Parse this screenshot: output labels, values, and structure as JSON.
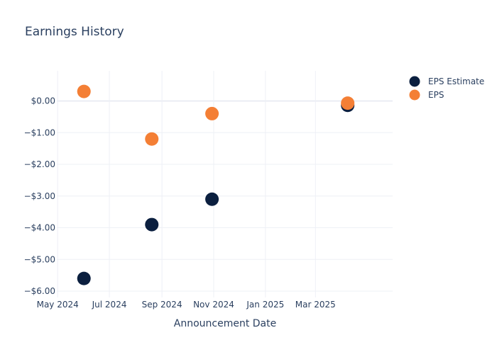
{
  "chart_data": {
    "type": "scatter",
    "title": "Earnings History",
    "xlabel": "Announcement Date",
    "ylabel": "",
    "x_tick_labels": [
      "May 2024",
      "Jul 2024",
      "Sep 2024",
      "Nov 2024",
      "Jan 2025",
      "Mar 2025"
    ],
    "x_tick_dates": [
      "2024-05-01",
      "2024-07-01",
      "2024-09-01",
      "2024-11-01",
      "2025-01-01",
      "2025-03-01"
    ],
    "xlim": [
      "2024-04-30",
      "2025-05-31"
    ],
    "y_tick_labels": [
      "$0.00",
      "−$1.00",
      "−$2.00",
      "−$3.00",
      "−$4.00",
      "−$5.00",
      "−$6.00"
    ],
    "y_tick_values": [
      0,
      -1,
      -2,
      -3,
      -4,
      -5,
      -6
    ],
    "ylim": [
      -6.2,
      0.95
    ],
    "grid": true,
    "legend_position": "top-right",
    "series": [
      {
        "name": "EPS Estimate",
        "color": "#0b1f3f",
        "x": [
          "2024-06-01",
          "2024-08-20",
          "2024-10-30",
          "2025-04-08"
        ],
        "y": [
          -5.6,
          -3.9,
          -3.1,
          -0.14
        ]
      },
      {
        "name": "EPS",
        "color": "#f47f35",
        "x": [
          "2024-06-01",
          "2024-08-20",
          "2024-10-30",
          "2025-04-08"
        ],
        "y": [
          0.3,
          -1.2,
          -0.4,
          -0.07
        ]
      }
    ]
  }
}
